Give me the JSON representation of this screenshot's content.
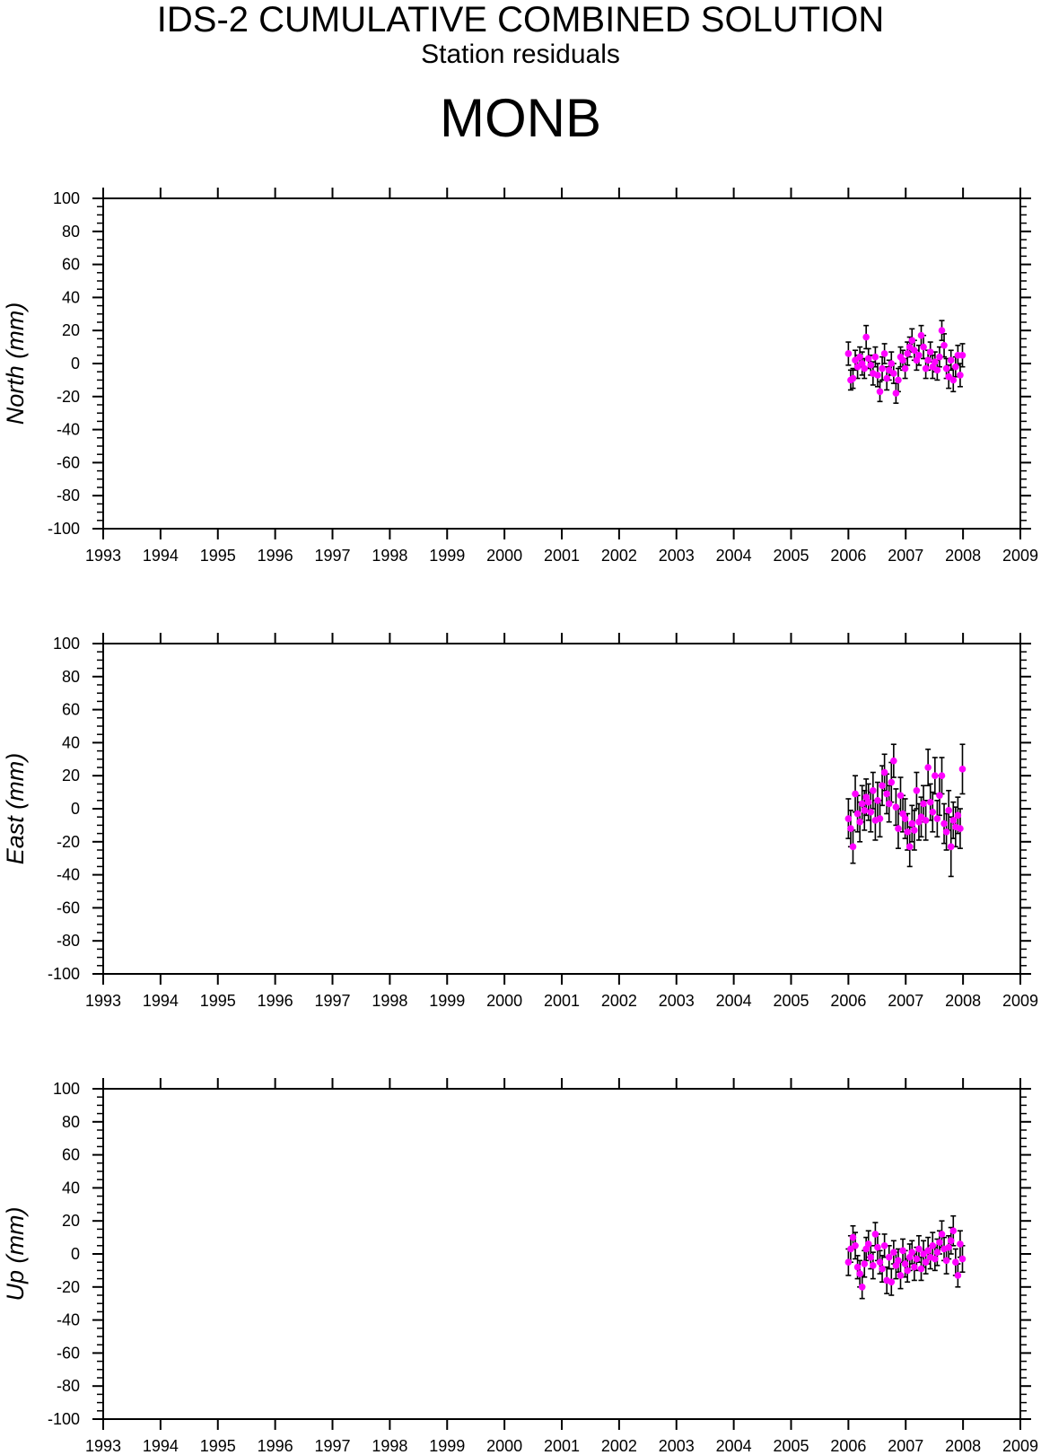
{
  "title": "IDS-2 CUMULATIVE COMBINED SOLUTION",
  "subtitle": "Station residuals",
  "station": "MONB",
  "colors": {
    "marker": "#ff00ff",
    "errorbar": "#000000",
    "axis": "#000000"
  },
  "chart_data": [
    {
      "type": "scatter",
      "ylabel": "North (mm)",
      "xlim": [
        1993,
        2009
      ],
      "ylim": [
        -100,
        100
      ],
      "xticks": [
        "1993",
        "1994",
        "1995",
        "1996",
        "1997",
        "1998",
        "1999",
        "2000",
        "2001",
        "2002",
        "2003",
        "2004",
        "2005",
        "2006",
        "2007",
        "2008",
        "2009"
      ],
      "yticks": [
        "100",
        "80",
        "60",
        "40",
        "20",
        "0",
        "-20",
        "-40",
        "-60",
        "-80",
        "-100"
      ],
      "grid": false,
      "error_bars": true,
      "points": [
        [
          2006.0,
          6,
          7
        ],
        [
          2006.04,
          -10,
          6
        ],
        [
          2006.08,
          -9,
          6
        ],
        [
          2006.12,
          2,
          6
        ],
        [
          2006.16,
          -2,
          7
        ],
        [
          2006.2,
          4,
          6
        ],
        [
          2006.24,
          0,
          7
        ],
        [
          2006.28,
          -3,
          6
        ],
        [
          2006.31,
          16,
          7
        ],
        [
          2006.35,
          3,
          6
        ],
        [
          2006.39,
          -1,
          6
        ],
        [
          2006.43,
          -6,
          7
        ],
        [
          2006.47,
          4,
          6
        ],
        [
          2006.51,
          -7,
          7
        ],
        [
          2006.55,
          -17,
          6
        ],
        [
          2006.59,
          -3,
          7
        ],
        [
          2006.63,
          6,
          6
        ],
        [
          2006.67,
          -9,
          7
        ],
        [
          2006.71,
          -4,
          6
        ],
        [
          2006.75,
          0,
          7
        ],
        [
          2006.79,
          -6,
          6
        ],
        [
          2006.83,
          -18,
          6
        ],
        [
          2006.87,
          -10,
          7
        ],
        [
          2006.91,
          4,
          6
        ],
        [
          2006.95,
          2,
          6
        ],
        [
          2006.99,
          -3,
          6
        ],
        [
          2007.03,
          6,
          7
        ],
        [
          2007.07,
          10,
          6
        ],
        [
          2007.11,
          14,
          7
        ],
        [
          2007.15,
          8,
          6
        ],
        [
          2007.19,
          2,
          6
        ],
        [
          2007.23,
          5,
          6
        ],
        [
          2007.27,
          17,
          6
        ],
        [
          2007.31,
          10,
          7
        ],
        [
          2007.35,
          -3,
          6
        ],
        [
          2007.39,
          2,
          6
        ],
        [
          2007.43,
          7,
          6
        ],
        [
          2007.47,
          -2,
          7
        ],
        [
          2007.51,
          1,
          6
        ],
        [
          2007.55,
          -4,
          6
        ],
        [
          2007.59,
          4,
          6
        ],
        [
          2007.63,
          20,
          6
        ],
        [
          2007.67,
          11,
          7
        ],
        [
          2007.71,
          -3,
          6
        ],
        [
          2007.75,
          -8,
          7
        ],
        [
          2007.79,
          2,
          6
        ],
        [
          2007.83,
          -10,
          7
        ],
        [
          2007.87,
          -2,
          6
        ],
        [
          2007.91,
          5,
          6
        ],
        [
          2007.95,
          -7,
          7
        ],
        [
          2007.99,
          5,
          7
        ]
      ]
    },
    {
      "type": "scatter",
      "ylabel": "East (mm)",
      "xlim": [
        1993,
        2009
      ],
      "ylim": [
        -100,
        100
      ],
      "xticks": [
        "1993",
        "1994",
        "1995",
        "1996",
        "1997",
        "1998",
        "1999",
        "2000",
        "2001",
        "2002",
        "2003",
        "2004",
        "2005",
        "2006",
        "2007",
        "2008",
        "2009"
      ],
      "yticks": [
        "100",
        "80",
        "60",
        "40",
        "20",
        "0",
        "-20",
        "-40",
        "-60",
        "-80",
        "-100"
      ],
      "grid": false,
      "error_bars": true,
      "points": [
        [
          2006.0,
          -6,
          12
        ],
        [
          2006.04,
          -12,
          11
        ],
        [
          2006.08,
          -23,
          10
        ],
        [
          2006.12,
          9,
          11
        ],
        [
          2006.16,
          -3,
          11
        ],
        [
          2006.2,
          -8,
          12
        ],
        [
          2006.24,
          3,
          11
        ],
        [
          2006.28,
          -1,
          12
        ],
        [
          2006.31,
          7,
          11
        ],
        [
          2006.35,
          4,
          11
        ],
        [
          2006.39,
          -2,
          12
        ],
        [
          2006.43,
          11,
          11
        ],
        [
          2006.47,
          -7,
          12
        ],
        [
          2006.51,
          5,
          11
        ],
        [
          2006.55,
          -6,
          11
        ],
        [
          2006.59,
          14,
          12
        ],
        [
          2006.63,
          22,
          11
        ],
        [
          2006.67,
          9,
          12
        ],
        [
          2006.71,
          3,
          11
        ],
        [
          2006.75,
          16,
          12
        ],
        [
          2006.79,
          29,
          10
        ],
        [
          2006.83,
          1,
          11
        ],
        [
          2006.87,
          -12,
          12
        ],
        [
          2006.91,
          8,
          11
        ],
        [
          2006.95,
          -3,
          11
        ],
        [
          2006.99,
          -6,
          12
        ],
        [
          2007.03,
          -14,
          11
        ],
        [
          2007.07,
          -23,
          12
        ],
        [
          2007.11,
          -9,
          11
        ],
        [
          2007.15,
          -13,
          12
        ],
        [
          2007.19,
          11,
          11
        ],
        [
          2007.23,
          -8,
          11
        ],
        [
          2007.27,
          -5,
          12
        ],
        [
          2007.31,
          3,
          11
        ],
        [
          2007.35,
          -7,
          12
        ],
        [
          2007.39,
          25,
          11
        ],
        [
          2007.43,
          4,
          11
        ],
        [
          2007.47,
          -2,
          12
        ],
        [
          2007.51,
          20,
          11
        ],
        [
          2007.55,
          -6,
          11
        ],
        [
          2007.59,
          8,
          12
        ],
        [
          2007.63,
          20,
          11
        ],
        [
          2007.67,
          -9,
          12
        ],
        [
          2007.71,
          -14,
          11
        ],
        [
          2007.75,
          -1,
          12
        ],
        [
          2007.79,
          -23,
          18
        ],
        [
          2007.83,
          -7,
          11
        ],
        [
          2007.87,
          -11,
          12
        ],
        [
          2007.91,
          -4,
          11
        ],
        [
          2007.95,
          -12,
          12
        ],
        [
          2007.99,
          24,
          15
        ]
      ]
    },
    {
      "type": "scatter",
      "ylabel": "Up (mm)",
      "xlim": [
        1993,
        2009
      ],
      "ylim": [
        -100,
        100
      ],
      "xticks": [
        "1993",
        "1994",
        "1995",
        "1996",
        "1997",
        "1998",
        "1999",
        "2000",
        "2001",
        "2002",
        "2003",
        "2004",
        "2005",
        "2006",
        "2007",
        "2008",
        "2009"
      ],
      "yticks": [
        "100",
        "80",
        "60",
        "40",
        "20",
        "0",
        "-20",
        "-40",
        "-60",
        "-80",
        "-100"
      ],
      "grid": false,
      "error_bars": true,
      "points": [
        [
          2006.0,
          -5,
          8
        ],
        [
          2006.04,
          3,
          8
        ],
        [
          2006.08,
          10,
          7
        ],
        [
          2006.12,
          5,
          8
        ],
        [
          2006.16,
          -8,
          7
        ],
        [
          2006.2,
          -12,
          8
        ],
        [
          2006.24,
          -20,
          7
        ],
        [
          2006.28,
          -6,
          8
        ],
        [
          2006.31,
          3,
          7
        ],
        [
          2006.35,
          6,
          8
        ],
        [
          2006.39,
          -2,
          7
        ],
        [
          2006.43,
          -7,
          8
        ],
        [
          2006.47,
          12,
          7
        ],
        [
          2006.51,
          4,
          8
        ],
        [
          2006.55,
          -5,
          7
        ],
        [
          2006.59,
          -9,
          8
        ],
        [
          2006.63,
          5,
          7
        ],
        [
          2006.67,
          -16,
          8
        ],
        [
          2006.71,
          -2,
          7
        ],
        [
          2006.75,
          -17,
          8
        ],
        [
          2006.79,
          1,
          7
        ],
        [
          2006.83,
          -7,
          8
        ],
        [
          2006.87,
          -4,
          7
        ],
        [
          2006.91,
          -13,
          8
        ],
        [
          2006.95,
          2,
          7
        ],
        [
          2006.99,
          -6,
          8
        ],
        [
          2007.03,
          -10,
          7
        ],
        [
          2007.07,
          -2,
          8
        ],
        [
          2007.11,
          1,
          7
        ],
        [
          2007.15,
          -8,
          8
        ],
        [
          2007.19,
          -3,
          7
        ],
        [
          2007.23,
          3,
          8
        ],
        [
          2007.27,
          -9,
          7
        ],
        [
          2007.31,
          0,
          8
        ],
        [
          2007.35,
          -5,
          7
        ],
        [
          2007.39,
          2,
          8
        ],
        [
          2007.43,
          -2,
          7
        ],
        [
          2007.47,
          5,
          8
        ],
        [
          2007.51,
          -3,
          7
        ],
        [
          2007.55,
          1,
          8
        ],
        [
          2007.59,
          7,
          7
        ],
        [
          2007.63,
          12,
          8
        ],
        [
          2007.67,
          3,
          7
        ],
        [
          2007.71,
          -4,
          8
        ],
        [
          2007.75,
          4,
          7
        ],
        [
          2007.79,
          8,
          8
        ],
        [
          2007.83,
          14,
          9
        ],
        [
          2007.87,
          -5,
          8
        ],
        [
          2007.91,
          -13,
          7
        ],
        [
          2007.95,
          6,
          8
        ],
        [
          2007.99,
          -3,
          8
        ]
      ]
    }
  ]
}
